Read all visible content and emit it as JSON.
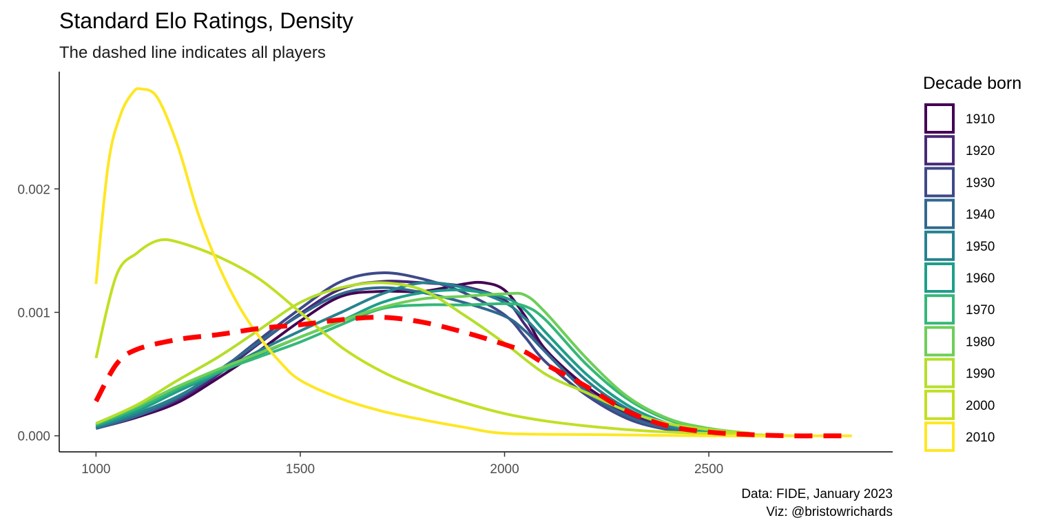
{
  "chart_data": {
    "type": "line",
    "title": "Standard Elo Ratings, Density",
    "subtitle": "The dashed line indicates all players",
    "xlabel": "",
    "ylabel": "",
    "xlim": [
      910,
      2950
    ],
    "ylim": [
      -0.00013,
      0.00295
    ],
    "x_ticks": [
      "1000",
      "1500",
      "2000",
      "2500"
    ],
    "y_ticks": [
      "0.000",
      "0.001",
      "0.002"
    ],
    "grid": false,
    "legend": {
      "title": "Decade born",
      "position": "right"
    },
    "caption": [
      "Data: FIDE, January 2023",
      "Viz: @bristowrichards"
    ],
    "series": [
      {
        "name": "1910",
        "color": "#440154",
        "points": [
          [
            1000,
            6e-05
          ],
          [
            1100,
            0.00015
          ],
          [
            1200,
            0.00027
          ],
          [
            1300,
            0.00047
          ],
          [
            1400,
            0.00069
          ],
          [
            1500,
            0.00093
          ],
          [
            1600,
            0.00113
          ],
          [
            1700,
            0.00117
          ],
          [
            1800,
            0.00117
          ],
          [
            1900,
            0.00123
          ],
          [
            1950,
            0.00124
          ],
          [
            2000,
            0.00118
          ],
          [
            2050,
            0.00097
          ],
          [
            2100,
            0.0007
          ],
          [
            2200,
            0.0004
          ],
          [
            2300,
            0.0002
          ],
          [
            2400,
            6e-05
          ],
          [
            2500,
            2e-05
          ]
        ]
      },
      {
        "name": "1920",
        "color": "#482878",
        "points": [
          [
            1000,
            6e-05
          ],
          [
            1100,
            0.00016
          ],
          [
            1200,
            0.00029
          ],
          [
            1300,
            0.0005
          ],
          [
            1400,
            0.00075
          ],
          [
            1500,
            0.00099
          ],
          [
            1600,
            0.00119
          ],
          [
            1700,
            0.00125
          ],
          [
            1800,
            0.00124
          ],
          [
            1900,
            0.00121
          ],
          [
            2000,
            0.0011
          ],
          [
            2050,
            0.0009
          ],
          [
            2100,
            0.00068
          ],
          [
            2200,
            0.00037
          ],
          [
            2300,
            0.00018
          ],
          [
            2400,
            6e-05
          ],
          [
            2500,
            2e-05
          ]
        ]
      },
      {
        "name": "1930",
        "color": "#3e4989",
        "points": [
          [
            1000,
            6e-05
          ],
          [
            1100,
            0.00016
          ],
          [
            1200,
            0.0003
          ],
          [
            1300,
            0.00052
          ],
          [
            1400,
            0.00078
          ],
          [
            1500,
            0.00103
          ],
          [
            1600,
            0.00125
          ],
          [
            1700,
            0.00132
          ],
          [
            1800,
            0.00127
          ],
          [
            1900,
            0.00116
          ],
          [
            2000,
            0.00098
          ],
          [
            2050,
            0.0008
          ],
          [
            2100,
            0.0006
          ],
          [
            2200,
            0.00033
          ],
          [
            2300,
            0.00014
          ],
          [
            2400,
            5e-05
          ],
          [
            2500,
            2e-05
          ]
        ]
      },
      {
        "name": "1940",
        "color": "#31688e",
        "points": [
          [
            1000,
            6e-05
          ],
          [
            1100,
            0.00016
          ],
          [
            1200,
            0.00031
          ],
          [
            1300,
            0.00053
          ],
          [
            1400,
            0.00076
          ],
          [
            1500,
            0.00098
          ],
          [
            1600,
            0.00115
          ],
          [
            1700,
            0.0012
          ],
          [
            1800,
            0.00116
          ],
          [
            1900,
            0.00108
          ],
          [
            2000,
            0.00097
          ],
          [
            2050,
            0.00085
          ],
          [
            2100,
            0.00068
          ],
          [
            2200,
            0.00036
          ],
          [
            2300,
            0.00016
          ],
          [
            2400,
            6e-05
          ],
          [
            2500,
            2e-05
          ]
        ]
      },
      {
        "name": "1950",
        "color": "#26828e",
        "points": [
          [
            1000,
            7e-05
          ],
          [
            1100,
            0.00018
          ],
          [
            1200,
            0.00032
          ],
          [
            1300,
            0.00051
          ],
          [
            1400,
            0.00069
          ],
          [
            1500,
            0.00085
          ],
          [
            1600,
            0.001
          ],
          [
            1700,
            0.00115
          ],
          [
            1800,
            0.00124
          ],
          [
            1900,
            0.0012
          ],
          [
            2000,
            0.00108
          ],
          [
            2050,
            0.00095
          ],
          [
            2100,
            0.00078
          ],
          [
            2200,
            0.00045
          ],
          [
            2300,
            0.00022
          ],
          [
            2400,
            8e-05
          ],
          [
            2500,
            3e-05
          ]
        ]
      },
      {
        "name": "1960",
        "color": "#1f9e89",
        "points": [
          [
            1000,
            8e-05
          ],
          [
            1100,
            0.0002
          ],
          [
            1200,
            0.00036
          ],
          [
            1300,
            0.00051
          ],
          [
            1400,
            0.00066
          ],
          [
            1500,
            0.0008
          ],
          [
            1600,
            0.00093
          ],
          [
            1700,
            0.00108
          ],
          [
            1800,
            0.00116
          ],
          [
            1900,
            0.00118
          ],
          [
            2000,
            0.00112
          ],
          [
            2050,
            0.00102
          ],
          [
            2100,
            0.00084
          ],
          [
            2200,
            0.0005
          ],
          [
            2300,
            0.00025
          ],
          [
            2400,
            0.0001
          ],
          [
            2500,
            3e-05
          ]
        ]
      },
      {
        "name": "1970",
        "color": "#35b779",
        "points": [
          [
            1000,
            9e-05
          ],
          [
            1100,
            0.00022
          ],
          [
            1200,
            0.00038
          ],
          [
            1300,
            0.00052
          ],
          [
            1400,
            0.00064
          ],
          [
            1500,
            0.00076
          ],
          [
            1600,
            0.0009
          ],
          [
            1700,
            0.00103
          ],
          [
            1800,
            0.00106
          ],
          [
            1900,
            0.00106
          ],
          [
            2000,
            0.00107
          ],
          [
            2050,
            0.00105
          ],
          [
            2100,
            0.00094
          ],
          [
            2200,
            0.00058
          ],
          [
            2300,
            0.0003
          ],
          [
            2400,
            0.00013
          ],
          [
            2500,
            5e-05
          ],
          [
            2600,
            2e-05
          ]
        ]
      },
      {
        "name": "1980",
        "color": "#6ece58",
        "points": [
          [
            1000,
            0.0001
          ],
          [
            1100,
            0.00024
          ],
          [
            1200,
            0.0004
          ],
          [
            1300,
            0.00054
          ],
          [
            1400,
            0.00067
          ],
          [
            1500,
            0.0008
          ],
          [
            1600,
            0.00093
          ],
          [
            1700,
            0.00104
          ],
          [
            1800,
            0.00111
          ],
          [
            1900,
            0.00113
          ],
          [
            2000,
            0.00115
          ],
          [
            2050,
            0.00114
          ],
          [
            2100,
            0.001
          ],
          [
            2200,
            0.00063
          ],
          [
            2300,
            0.00032
          ],
          [
            2400,
            0.00014
          ],
          [
            2500,
            6e-05
          ],
          [
            2600,
            2e-05
          ]
        ]
      },
      {
        "name": "1990",
        "color": "#b5de2b",
        "points": [
          [
            1000,
            0.0001
          ],
          [
            1100,
            0.00025
          ],
          [
            1200,
            0.00045
          ],
          [
            1300,
            0.00064
          ],
          [
            1400,
            0.00086
          ],
          [
            1500,
            0.00108
          ],
          [
            1600,
            0.0012
          ],
          [
            1700,
            0.00124
          ],
          [
            1800,
            0.00118
          ],
          [
            1900,
            0.00098
          ],
          [
            2000,
            0.00075
          ],
          [
            2100,
            0.0005
          ],
          [
            2200,
            0.00035
          ],
          [
            2300,
            0.0002
          ],
          [
            2400,
            0.0001
          ],
          [
            2500,
            5e-05
          ],
          [
            2600,
            2e-05
          ]
        ]
      },
      {
        "name": "2000",
        "color": "#c2df23",
        "points": [
          [
            1000,
            0.00063
          ],
          [
            1050,
            0.0013
          ],
          [
            1100,
            0.00148
          ],
          [
            1150,
            0.00158
          ],
          [
            1200,
            0.00157
          ],
          [
            1300,
            0.00145
          ],
          [
            1400,
            0.00127
          ],
          [
            1500,
            0.001
          ],
          [
            1600,
            0.00072
          ],
          [
            1700,
            0.00052
          ],
          [
            1800,
            0.00038
          ],
          [
            1900,
            0.00027
          ],
          [
            2000,
            0.00018
          ],
          [
            2100,
            0.00012
          ],
          [
            2200,
            8e-05
          ],
          [
            2300,
            5e-05
          ],
          [
            2400,
            3e-05
          ],
          [
            2500,
            2e-05
          ],
          [
            2600,
            1e-05
          ],
          [
            2700,
            0.0
          ]
        ]
      },
      {
        "name": "2010",
        "color": "#fde725",
        "points": [
          [
            1000,
            0.00123
          ],
          [
            1030,
            0.0022
          ],
          [
            1060,
            0.0026
          ],
          [
            1090,
            0.00278
          ],
          [
            1110,
            0.00281
          ],
          [
            1150,
            0.00274
          ],
          [
            1200,
            0.00235
          ],
          [
            1250,
            0.0018
          ],
          [
            1300,
            0.00138
          ],
          [
            1350,
            0.00105
          ],
          [
            1400,
            0.0008
          ],
          [
            1450,
            0.0006
          ],
          [
            1500,
            0.00045
          ],
          [
            1600,
            0.0003
          ],
          [
            1700,
            0.0002
          ],
          [
            1800,
            0.00013
          ],
          [
            1900,
            7e-05
          ],
          [
            2000,
            2e-05
          ],
          [
            2200,
            1e-05
          ],
          [
            2500,
            0.0
          ],
          [
            2850,
            0.0
          ]
        ]
      },
      {
        "name": "All players",
        "color": "#ff0000",
        "dashed": true,
        "points": [
          [
            1000,
            0.00028
          ],
          [
            1050,
            0.00058
          ],
          [
            1100,
            0.0007
          ],
          [
            1200,
            0.00078
          ],
          [
            1300,
            0.00082
          ],
          [
            1400,
            0.00087
          ],
          [
            1500,
            0.0009
          ],
          [
            1600,
            0.00094
          ],
          [
            1700,
            0.00096
          ],
          [
            1800,
            0.00092
          ],
          [
            1900,
            0.00084
          ],
          [
            2000,
            0.00074
          ],
          [
            2050,
            0.00068
          ],
          [
            2100,
            0.00058
          ],
          [
            2200,
            0.0004
          ],
          [
            2300,
            0.0002
          ],
          [
            2400,
            8e-05
          ],
          [
            2500,
            3e-05
          ],
          [
            2600,
            1e-05
          ],
          [
            2700,
            0.0
          ],
          [
            2800,
            0.0
          ],
          [
            2850,
            0.0
          ]
        ]
      }
    ]
  }
}
